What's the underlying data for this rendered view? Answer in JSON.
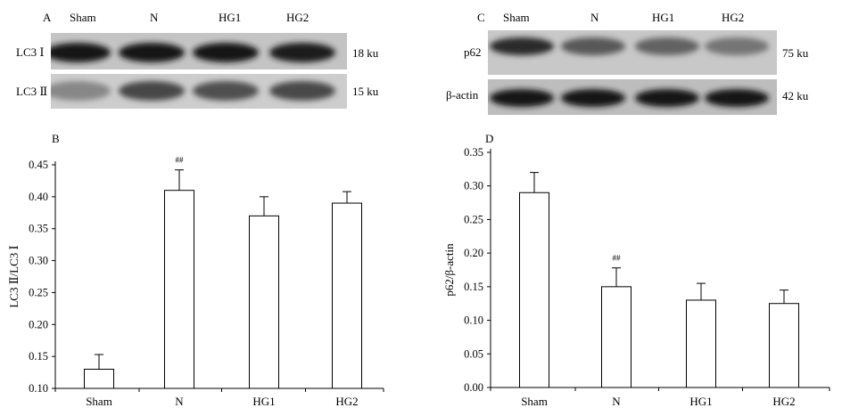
{
  "panelA": {
    "letter": "A",
    "lanes": [
      "Sham",
      "N",
      "HG1",
      "HG2"
    ],
    "rows": [
      {
        "label": "LC3 Ⅰ",
        "size": "18 ku",
        "intensity": [
          0.95,
          0.97,
          0.95,
          0.92
        ]
      },
      {
        "label": "LC3 Ⅱ",
        "size": "15 ku",
        "intensity": [
          0.35,
          0.7,
          0.65,
          0.68
        ]
      }
    ]
  },
  "panelC": {
    "letter": "C",
    "lanes": [
      "Sham",
      "N",
      "HG1",
      "HG2"
    ],
    "rows": [
      {
        "label": "p62",
        "size": "75 ku",
        "intensity": [
          0.85,
          0.6,
          0.55,
          0.45
        ]
      },
      {
        "label": "β-actin",
        "size": "42 ku",
        "intensity": [
          0.95,
          0.95,
          0.95,
          0.95
        ]
      }
    ]
  },
  "chart_data": [
    {
      "panel": "B",
      "type": "bar",
      "categories": [
        "Sham",
        "N",
        "HG1",
        "HG2"
      ],
      "values": [
        0.13,
        0.41,
        0.37,
        0.39
      ],
      "errors": [
        0.023,
        0.032,
        0.03,
        0.018
      ],
      "annotations": [
        {
          "category": "N",
          "text": "##"
        }
      ],
      "ylabel": "LC3 Ⅱ/LC3 Ⅰ",
      "xlabel": "",
      "ylim": [
        0.1,
        0.45
      ],
      "yticks": [
        "0.10",
        "0.15",
        "0.20",
        "0.25",
        "0.30",
        "0.35",
        "0.40",
        "0.45"
      ],
      "grid": false,
      "bar_color": "#ffffff"
    },
    {
      "panel": "D",
      "type": "bar",
      "categories": [
        "Sham",
        "N",
        "HG1",
        "HG2"
      ],
      "values": [
        0.29,
        0.15,
        0.13,
        0.125
      ],
      "errors": [
        0.03,
        0.028,
        0.025,
        0.02
      ],
      "annotations": [
        {
          "category": "N",
          "text": "##"
        }
      ],
      "ylabel": "p62/β-actin",
      "xlabel": "",
      "ylim": [
        0.0,
        0.35
      ],
      "yticks": [
        "0.00",
        "0.05",
        "0.10",
        "0.15",
        "0.20",
        "0.25",
        "0.30",
        "0.35"
      ],
      "grid": false,
      "bar_color": "#ffffff"
    }
  ]
}
